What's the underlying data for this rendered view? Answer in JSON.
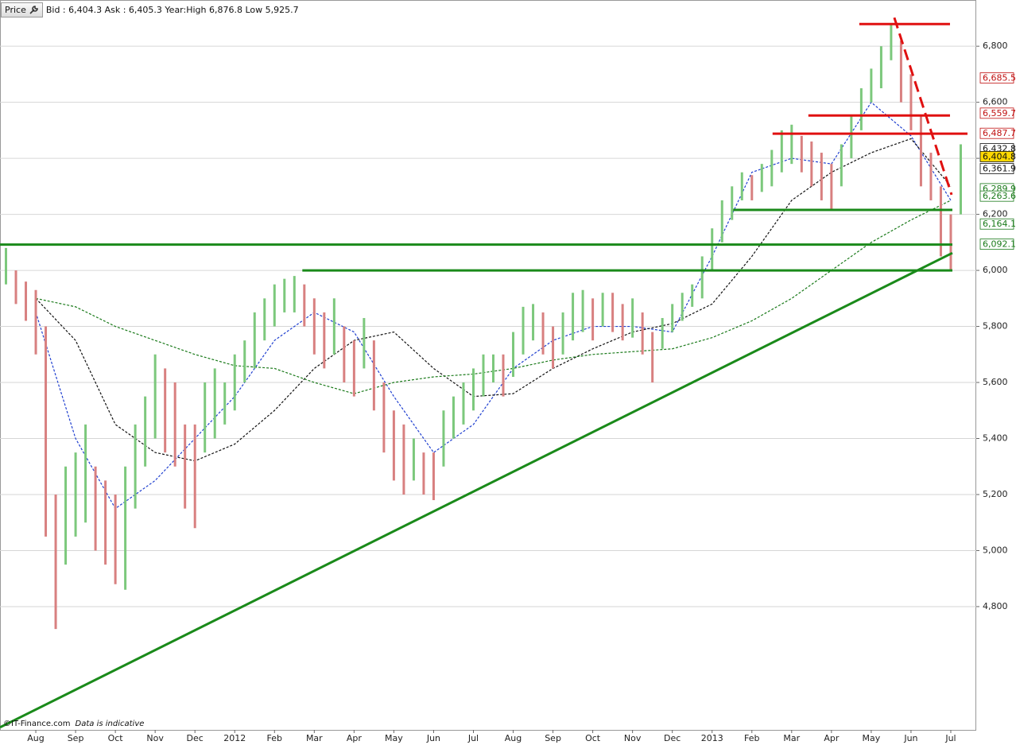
{
  "header": {
    "button": "Price",
    "quote": "Bid : 6,404.3 Ask : 6,405.3 Year:High 6,876.8 Low 5,925.7"
  },
  "footer": {
    "source": "©IT-Finance.com",
    "note": "Data is indicative"
  },
  "chart_data": {
    "type": "ohlc",
    "up_color": "#7cc87c",
    "down_color": "#d88080",
    "grid": true,
    "xlim": [
      -0.9,
      23.64
    ],
    "ylim": [
      4360,
      6965
    ],
    "xticks": [
      {
        "value": 0,
        "label": "Aug"
      },
      {
        "value": 1,
        "label": "Sep"
      },
      {
        "value": 2,
        "label": "Oct"
      },
      {
        "value": 3,
        "label": "Nov"
      },
      {
        "value": 4,
        "label": "Dec"
      },
      {
        "value": 5,
        "label": "2012"
      },
      {
        "value": 6,
        "label": "Feb"
      },
      {
        "value": 7,
        "label": "Mar"
      },
      {
        "value": 8,
        "label": "Apr"
      },
      {
        "value": 9,
        "label": "May"
      },
      {
        "value": 10,
        "label": "Jun"
      },
      {
        "value": 11,
        "label": "Jul"
      },
      {
        "value": 12,
        "label": "Aug"
      },
      {
        "value": 13,
        "label": "Sep"
      },
      {
        "value": 14,
        "label": "Oct"
      },
      {
        "value": 15,
        "label": "Nov"
      },
      {
        "value": 16,
        "label": "Dec"
      },
      {
        "value": 17,
        "label": "2013"
      },
      {
        "value": 18,
        "label": "Feb"
      },
      {
        "value": 19,
        "label": "Mar"
      },
      {
        "value": 20,
        "label": "Apr"
      },
      {
        "value": 21,
        "label": "May"
      },
      {
        "value": 22,
        "label": "Jun"
      },
      {
        "value": 23,
        "label": "Jul"
      }
    ],
    "yticks": [
      {
        "value": 4800,
        "label": "4,800"
      },
      {
        "value": 5000,
        "label": "5,000"
      },
      {
        "value": 5200,
        "label": "5,200"
      },
      {
        "value": 5400,
        "label": "5,400"
      },
      {
        "value": 5600,
        "label": "5,600"
      },
      {
        "value": 5800,
        "label": "5,800"
      },
      {
        "value": 6000,
        "label": "6,000"
      },
      {
        "value": 6200,
        "label": "6,200"
      },
      {
        "value": 6400,
        "label": "6,400"
      },
      {
        "value": 6600,
        "label": "6,600"
      },
      {
        "value": 6800,
        "label": "6,800"
      }
    ],
    "x": [
      -0.75,
      -0.5,
      -0.25,
      0,
      0.25,
      0.5,
      0.75,
      1,
      1.25,
      1.5,
      1.75,
      2,
      2.25,
      2.5,
      2.75,
      3,
      3.25,
      3.5,
      3.75,
      4,
      4.25,
      4.5,
      4.75,
      5,
      5.25,
      5.5,
      5.75,
      6,
      6.25,
      6.5,
      6.75,
      7,
      7.25,
      7.5,
      7.75,
      8,
      8.25,
      8.5,
      8.75,
      9,
      9.25,
      9.5,
      9.75,
      10,
      10.25,
      10.5,
      10.75,
      11,
      11.25,
      11.5,
      11.75,
      12,
      12.25,
      12.5,
      12.75,
      13,
      13.25,
      13.5,
      13.75,
      14,
      14.25,
      14.5,
      14.75,
      15,
      15.25,
      15.5,
      15.75,
      16,
      16.25,
      16.5,
      16.75,
      17,
      17.25,
      17.5,
      17.75,
      18,
      18.25,
      18.5,
      18.75,
      19,
      19.25,
      19.5,
      19.75,
      20,
      20.25,
      20.5,
      20.75,
      21,
      21.25,
      21.5,
      21.75,
      22,
      22.25,
      22.5,
      22.75,
      23,
      23.25
    ],
    "low": [
      5950,
      5880,
      5820,
      5700,
      5050,
      4720,
      4950,
      5050,
      5100,
      5000,
      4950,
      4880,
      4860,
      5150,
      5300,
      5400,
      5350,
      5300,
      5150,
      5080,
      5350,
      5400,
      5450,
      5500,
      5600,
      5650,
      5750,
      5800,
      5850,
      5850,
      5800,
      5700,
      5650,
      5700,
      5600,
      5550,
      5650,
      5500,
      5350,
      5250,
      5200,
      5250,
      5200,
      5180,
      5300,
      5400,
      5450,
      5500,
      5550,
      5600,
      5550,
      5620,
      5700,
      5750,
      5700,
      5650,
      5700,
      5750,
      5780,
      5750,
      5800,
      5780,
      5750,
      5760,
      5700,
      5600,
      5720,
      5780,
      5820,
      5870,
      5900,
      6000,
      6100,
      6180,
      6250,
      6250,
      6280,
      6300,
      6350,
      6380,
      6350,
      6300,
      6250,
      6220,
      6300,
      6400,
      6500,
      6600,
      6650,
      6750,
      6600,
      6500,
      6300,
      6250,
      6050,
      6000,
      6200
    ],
    "high": [
      6080,
      6000,
      5960,
      5930,
      5800,
      5200,
      5300,
      5350,
      5450,
      5300,
      5250,
      5200,
      5300,
      5450,
      5550,
      5700,
      5650,
      5600,
      5450,
      5450,
      5600,
      5650,
      5600,
      5700,
      5750,
      5850,
      5900,
      5950,
      5970,
      5980,
      5950,
      5900,
      5850,
      5900,
      5800,
      5750,
      5830,
      5750,
      5600,
      5500,
      5450,
      5400,
      5350,
      5350,
      5500,
      5550,
      5600,
      5650,
      5700,
      5700,
      5700,
      5780,
      5870,
      5880,
      5850,
      5800,
      5850,
      5920,
      5930,
      5900,
      5920,
      5920,
      5880,
      5900,
      5850,
      5780,
      5830,
      5880,
      5920,
      5950,
      6050,
      6150,
      6250,
      6300,
      6350,
      6340,
      6380,
      6430,
      6500,
      6520,
      6480,
      6460,
      6420,
      6380,
      6450,
      6550,
      6650,
      6720,
      6800,
      6877,
      6820,
      6700,
      6550,
      6420,
      6300,
      6200,
      6450
    ],
    "ma_x": [
      0,
      1,
      2,
      3,
      4,
      5,
      6,
      7,
      8,
      9,
      10,
      11,
      12,
      13,
      14,
      15,
      16,
      17,
      18,
      19,
      20,
      21,
      22,
      23
    ],
    "averages": [
      {
        "color": "#2040d0",
        "values": [
          5850,
          5400,
          5150,
          5250,
          5400,
          5550,
          5750,
          5850,
          5780,
          5550,
          5350,
          5450,
          5650,
          5750,
          5800,
          5800,
          5780,
          6050,
          6350,
          6400,
          6380,
          6600,
          6480,
          6250
        ]
      },
      {
        "color": "#111111",
        "values": [
          5900,
          5750,
          5450,
          5350,
          5320,
          5380,
          5500,
          5650,
          5750,
          5780,
          5650,
          5550,
          5560,
          5650,
          5720,
          5780,
          5810,
          5880,
          6050,
          6250,
          6350,
          6420,
          6470,
          6300
        ]
      },
      {
        "color": "#1a7a1a",
        "values": [
          5900,
          5870,
          5800,
          5750,
          5700,
          5660,
          5650,
          5600,
          5560,
          5600,
          5620,
          5630,
          5650,
          5680,
          5700,
          5710,
          5720,
          5760,
          5820,
          5900,
          6000,
          6100,
          6180,
          6250
        ]
      }
    ],
    "lines": [
      {
        "color": "#1a8a1a",
        "dashed": false,
        "x": [
          -0.9,
          23.04
        ],
        "y": [
          4369,
          6062
        ]
      },
      {
        "color": "#1a8a1a",
        "dashed": false,
        "x": [
          -0.9,
          23.04
        ],
        "y": [
          6092,
          6092
        ]
      },
      {
        "color": "#1a8a1a",
        "dashed": false,
        "x": [
          6.7,
          23.04
        ],
        "y": [
          6000,
          6000
        ]
      },
      {
        "color": "#1a8a1a",
        "dashed": false,
        "x": [
          17.53,
          23.04
        ],
        "y": [
          6216,
          6216
        ]
      },
      {
        "color": "#e01010",
        "dashed": false,
        "x": [
          20.7,
          22.98
        ],
        "y": [
          6879,
          6879
        ]
      },
      {
        "color": "#e01010",
        "dashed": false,
        "x": [
          19.42,
          22.98
        ],
        "y": [
          6553,
          6553
        ]
      },
      {
        "color": "#e01010",
        "dashed": false,
        "x": [
          18.52,
          23.42
        ],
        "y": [
          6488,
          6488
        ]
      },
      {
        "color": "#e01010",
        "dashed": true,
        "x": [
          21.58,
          23.02
        ],
        "y": [
          6902,
          6270
        ]
      }
    ],
    "price_labels": [
      {
        "value": 6685.5,
        "label": "6,685.5",
        "color": "#c01010",
        "bg": "#ffffff"
      },
      {
        "value": 6559.7,
        "label": "6,559.7",
        "color": "#c01010",
        "bg": "#ffffff"
      },
      {
        "value": 6487.7,
        "label": "6,487.7",
        "color": "#c01010",
        "bg": "#ffffff"
      },
      {
        "value": 6432.8,
        "label": "6,432.8",
        "color": "#111111",
        "bg": "#ffffff"
      },
      {
        "value": 6404.8,
        "label": "6,404.8",
        "color": "#111111",
        "bg": "#ffd800"
      },
      {
        "value": 6361.9,
        "label": "6,361.9",
        "color": "#111111",
        "bg": "#ffffff"
      },
      {
        "value": 6289.9,
        "label": "6,289.9",
        "color": "#1a7a1a",
        "bg": "#ffffff"
      },
      {
        "value": 6263.6,
        "label": "6,263.6",
        "color": "#1a7a1a",
        "bg": "#ffffff"
      },
      {
        "value": 6164.1,
        "label": "6,164.1",
        "color": "#1a7a1a",
        "bg": "#ffffff"
      },
      {
        "value": 6092.1,
        "label": "6,092.1",
        "color": "#1a7a1a",
        "bg": "#ffffff"
      }
    ]
  }
}
